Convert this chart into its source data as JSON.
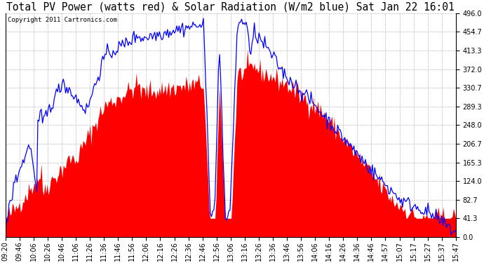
{
  "title": "Total PV Power (watts red) & Solar Radiation (W/m2 blue) Sat Jan 22 16:01",
  "copyright": "Copyright 2011 Cartronics.com",
  "ymin": 0.0,
  "ymax": 496.0,
  "yticks": [
    0.0,
    41.3,
    82.7,
    124.0,
    165.3,
    206.7,
    248.0,
    289.3,
    330.7,
    372.0,
    413.3,
    454.7,
    496.0
  ],
  "xtick_labels": [
    "09:20",
    "09:46",
    "10:06",
    "10:26",
    "10:46",
    "11:06",
    "11:26",
    "11:36",
    "11:46",
    "11:56",
    "12:06",
    "12:16",
    "12:26",
    "12:36",
    "12:46",
    "12:56",
    "13:06",
    "13:16",
    "13:26",
    "13:36",
    "13:46",
    "13:56",
    "14:06",
    "14:16",
    "14:26",
    "14:36",
    "14:46",
    "14:57",
    "15:07",
    "15:17",
    "15:27",
    "15:37",
    "15:47"
  ],
  "bg_color": "#ffffff",
  "plot_bg_color": "#ffffff",
  "grid_color": "#bbbbbb",
  "red_color": "#ff0000",
  "blue_color": "#0000ff",
  "title_fontsize": 10.5,
  "tick_fontsize": 7,
  "copyright_fontsize": 6.5
}
